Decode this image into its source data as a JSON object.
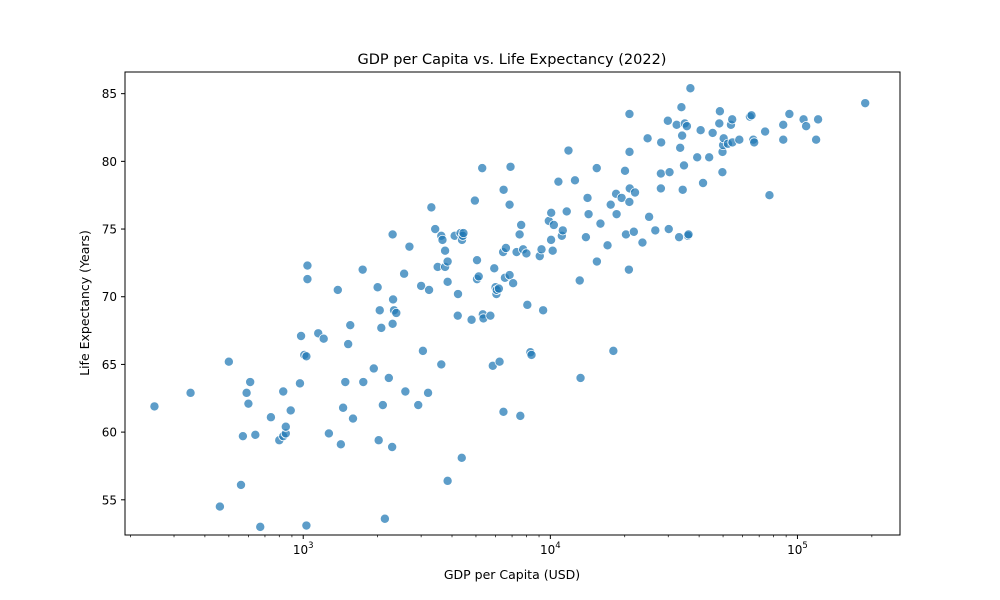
{
  "chart_data": {
    "type": "scatter",
    "title": "GDP per Capita vs. Life Expectancy (2022)",
    "xlabel": "GDP per Capita (USD)",
    "ylabel": "Life Expectancy (Years)",
    "xscale": "log",
    "xlim": [
      190,
      260000
    ],
    "ylim": [
      52.4,
      86.6
    ],
    "xticks": [
      {
        "value": 1000,
        "label": "10",
        "exp": "3"
      },
      {
        "value": 10000,
        "label": "10",
        "exp": "4"
      },
      {
        "value": 100000,
        "label": "10",
        "exp": "5"
      }
    ],
    "yticks": [
      55,
      60,
      65,
      70,
      75,
      80,
      85
    ],
    "grid": false,
    "marker_color": "#1f77b4",
    "points": [
      [
        250,
        61.9
      ],
      [
        350,
        62.9
      ],
      [
        460,
        54.5
      ],
      [
        500,
        65.2
      ],
      [
        560,
        56.1
      ],
      [
        570,
        59.7
      ],
      [
        590,
        62.9
      ],
      [
        600,
        62.1
      ],
      [
        610,
        63.7
      ],
      [
        640,
        59.8
      ],
      [
        670,
        53.0
      ],
      [
        740,
        61.1
      ],
      [
        800,
        59.4
      ],
      [
        830,
        63.0
      ],
      [
        830,
        59.7
      ],
      [
        850,
        59.9
      ],
      [
        850,
        60.4
      ],
      [
        890,
        61.6
      ],
      [
        970,
        63.6
      ],
      [
        980,
        67.1
      ],
      [
        1010,
        65.7
      ],
      [
        1030,
        65.6
      ],
      [
        1030,
        53.1
      ],
      [
        1040,
        72.3
      ],
      [
        1040,
        71.3
      ],
      [
        1150,
        67.3
      ],
      [
        1210,
        66.9
      ],
      [
        1270,
        59.9
      ],
      [
        1380,
        70.5
      ],
      [
        1420,
        59.1
      ],
      [
        1450,
        61.8
      ],
      [
        1480,
        63.7
      ],
      [
        1520,
        66.5
      ],
      [
        1550,
        67.9
      ],
      [
        1590,
        61.0
      ],
      [
        1740,
        72.0
      ],
      [
        1750,
        63.7
      ],
      [
        1930,
        64.7
      ],
      [
        2000,
        70.7
      ],
      [
        2020,
        59.4
      ],
      [
        2040,
        69.0
      ],
      [
        2070,
        67.7
      ],
      [
        2100,
        62.0
      ],
      [
        2140,
        53.6
      ],
      [
        2220,
        64.0
      ],
      [
        2290,
        58.9
      ],
      [
        2300,
        74.6
      ],
      [
        2300,
        68.0
      ],
      [
        2310,
        69.8
      ],
      [
        2330,
        69.0
      ],
      [
        2380,
        68.8
      ],
      [
        2560,
        71.7
      ],
      [
        2590,
        63.0
      ],
      [
        2690,
        73.7
      ],
      [
        2920,
        62.0
      ],
      [
        3000,
        70.8
      ],
      [
        3050,
        66.0
      ],
      [
        3200,
        62.9
      ],
      [
        3230,
        70.5
      ],
      [
        3300,
        76.6
      ],
      [
        3420,
        75.0
      ],
      [
        3500,
        72.2
      ],
      [
        3620,
        74.5
      ],
      [
        3620,
        65.0
      ],
      [
        3660,
        74.2
      ],
      [
        3750,
        72.2
      ],
      [
        3750,
        73.4
      ],
      [
        3840,
        56.4
      ],
      [
        3840,
        71.1
      ],
      [
        3840,
        72.6
      ],
      [
        4100,
        74.5
      ],
      [
        4220,
        68.6
      ],
      [
        4230,
        70.2
      ],
      [
        4330,
        74.7
      ],
      [
        4380,
        58.1
      ],
      [
        4390,
        74.2
      ],
      [
        4420,
        74.5
      ],
      [
        4450,
        74.7
      ],
      [
        4800,
        68.3
      ],
      [
        4950,
        77.1
      ],
      [
        5050,
        71.3
      ],
      [
        5050,
        72.7
      ],
      [
        5130,
        71.5
      ],
      [
        5300,
        79.5
      ],
      [
        5330,
        68.7
      ],
      [
        5360,
        68.4
      ],
      [
        5720,
        68.6
      ],
      [
        5850,
        64.9
      ],
      [
        5930,
        72.1
      ],
      [
        6000,
        70.7
      ],
      [
        6050,
        70.2
      ],
      [
        6070,
        70.5
      ],
      [
        6190,
        70.6
      ],
      [
        6230,
        65.2
      ],
      [
        6440,
        73.3
      ],
      [
        6460,
        61.5
      ],
      [
        6470,
        77.9
      ],
      [
        6550,
        71.4
      ],
      [
        6610,
        73.6
      ],
      [
        6840,
        71.6
      ],
      [
        6840,
        76.8
      ],
      [
        6900,
        79.6
      ],
      [
        7070,
        71.0
      ],
      [
        7300,
        73.3
      ],
      [
        7510,
        74.6
      ],
      [
        7560,
        61.2
      ],
      [
        7620,
        75.3
      ],
      [
        7760,
        73.5
      ],
      [
        8000,
        73.2
      ],
      [
        8070,
        69.4
      ],
      [
        8300,
        65.9
      ],
      [
        8390,
        65.7
      ],
      [
        9060,
        73.0
      ],
      [
        9210,
        73.5
      ],
      [
        9350,
        69.0
      ],
      [
        9860,
        75.6
      ],
      [
        10070,
        74.2
      ],
      [
        10080,
        76.2
      ],
      [
        10220,
        73.4
      ],
      [
        10330,
        75.3
      ],
      [
        10780,
        78.5
      ],
      [
        11130,
        74.5
      ],
      [
        11230,
        74.9
      ],
      [
        11650,
        76.3
      ],
      [
        11840,
        80.8
      ],
      [
        12580,
        78.6
      ],
      [
        13150,
        71.2
      ],
      [
        13250,
        64.0
      ],
      [
        13930,
        74.4
      ],
      [
        14140,
        77.3
      ],
      [
        14280,
        76.1
      ],
      [
        15410,
        79.5
      ],
      [
        15430,
        72.6
      ],
      [
        15950,
        75.4
      ],
      [
        17040,
        73.8
      ],
      [
        17550,
        76.8
      ],
      [
        17990,
        66.0
      ],
      [
        18450,
        77.6
      ],
      [
        18540,
        76.1
      ],
      [
        19430,
        77.3
      ],
      [
        20050,
        79.3
      ],
      [
        20230,
        74.6
      ],
      [
        20790,
        72.0
      ],
      [
        20880,
        77.0
      ],
      [
        20900,
        83.5
      ],
      [
        20910,
        80.7
      ],
      [
        20960,
        78.0
      ],
      [
        21770,
        74.8
      ],
      [
        22010,
        77.7
      ],
      [
        23590,
        74.0
      ],
      [
        24750,
        81.7
      ],
      [
        25100,
        75.9
      ],
      [
        26590,
        74.9
      ],
      [
        28010,
        78.0
      ],
      [
        28010,
        79.1
      ],
      [
        28090,
        81.4
      ],
      [
        29890,
        83.0
      ],
      [
        30140,
        75.0
      ],
      [
        30370,
        79.2
      ],
      [
        32440,
        82.7
      ],
      [
        33190,
        74.4
      ],
      [
        33530,
        81.0
      ],
      [
        33920,
        84.0
      ],
      [
        34140,
        81.9
      ],
      [
        34330,
        77.9
      ],
      [
        34740,
        79.7
      ],
      [
        35000,
        82.8
      ],
      [
        35690,
        82.6
      ],
      [
        36020,
        74.5
      ],
      [
        36230,
        74.6
      ],
      [
        36880,
        85.4
      ],
      [
        39290,
        80.3
      ],
      [
        40570,
        82.3
      ],
      [
        41490,
        78.4
      ],
      [
        43930,
        80.3
      ],
      [
        45370,
        82.1
      ],
      [
        48270,
        82.8
      ],
      [
        48540,
        83.7
      ],
      [
        49690,
        79.2
      ],
      [
        49740,
        80.7
      ],
      [
        50010,
        81.2
      ],
      [
        50290,
        81.7
      ],
      [
        52310,
        81.3
      ],
      [
        53810,
        82.7
      ],
      [
        54430,
        83.1
      ],
      [
        54560,
        81.4
      ],
      [
        58170,
        81.6
      ],
      [
        64210,
        83.3
      ],
      [
        65170,
        83.4
      ],
      [
        66260,
        81.6
      ],
      [
        66830,
        81.4
      ],
      [
        73980,
        82.2
      ],
      [
        77040,
        77.5
      ],
      [
        87590,
        82.7
      ],
      [
        87600,
        81.6
      ],
      [
        92750,
        83.5
      ],
      [
        105850,
        83.1
      ],
      [
        108420,
        82.6
      ],
      [
        119000,
        81.6
      ],
      [
        121200,
        83.1
      ],
      [
        188000,
        84.3
      ]
    ]
  }
}
